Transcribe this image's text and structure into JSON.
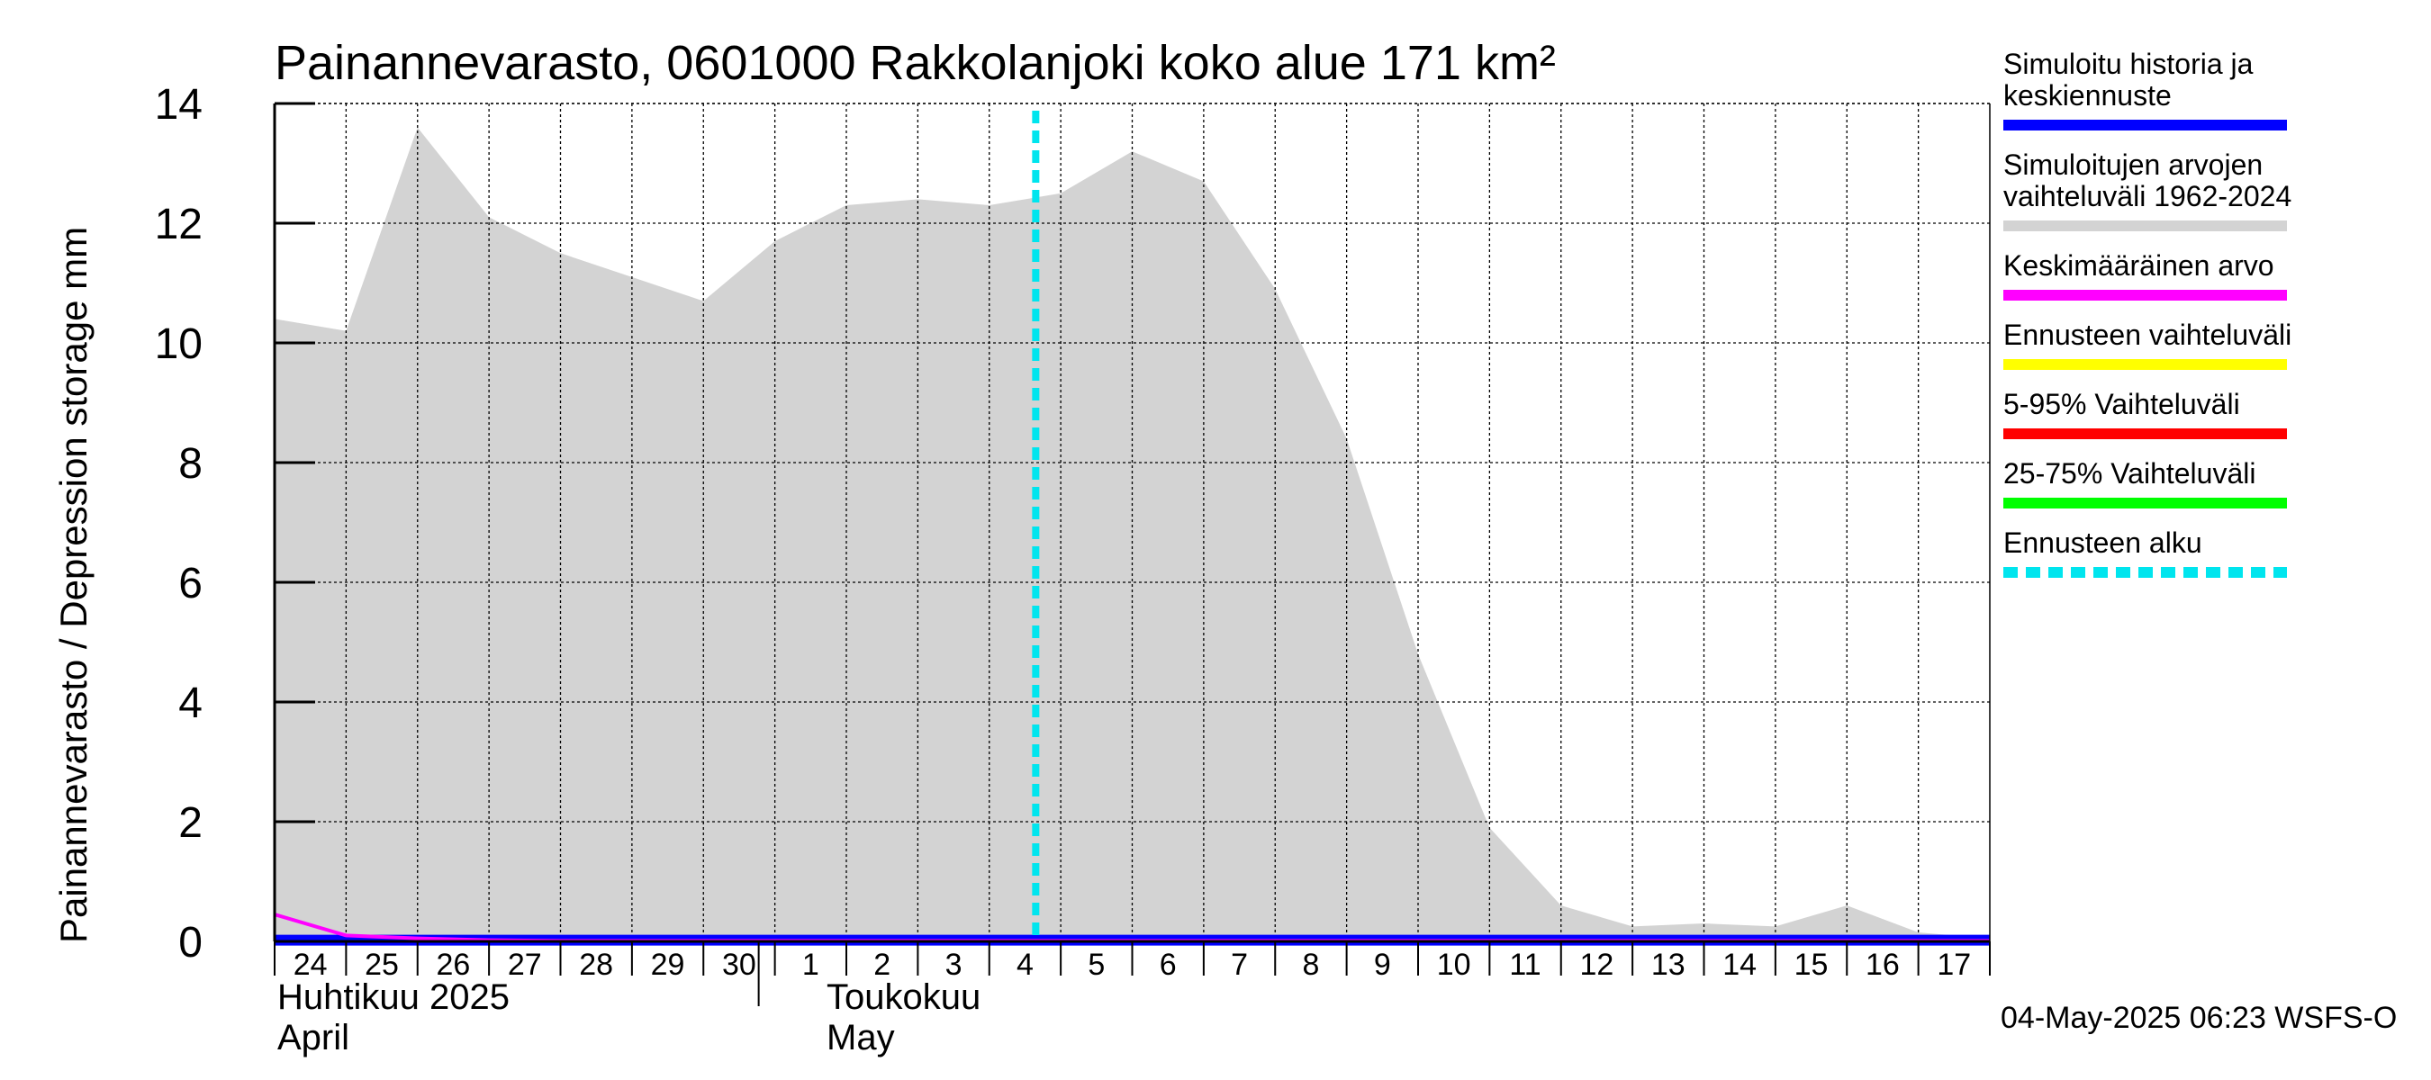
{
  "chart_data": {
    "type": "area",
    "title": "Painannevarasto, 0601000 Rakkolanjoki koko alue 171 km²",
    "ylabel": "Painannevarasto / Depression storage    mm",
    "ylim": [
      0,
      14
    ],
    "yticks": [
      0,
      2,
      4,
      6,
      8,
      10,
      12,
      14
    ],
    "grid": true,
    "x_tick_labels": [
      "24",
      "25",
      "26",
      "27",
      "28",
      "29",
      "30",
      "1",
      "2",
      "3",
      "4",
      "5",
      "6",
      "7",
      "8",
      "9",
      "10",
      "11",
      "12",
      "13",
      "14",
      "15",
      "16",
      "17"
    ],
    "months": [
      {
        "fi": "Huhtikuu  2025",
        "en": "April"
      },
      {
        "fi": "Toukokuu",
        "en": "May"
      }
    ],
    "x": [
      "2025-04-24",
      "2025-04-25",
      "2025-04-26",
      "2025-04-27",
      "2025-04-28",
      "2025-04-29",
      "2025-04-30",
      "2025-05-01",
      "2025-05-02",
      "2025-05-03",
      "2025-05-04",
      "2025-05-05",
      "2025-05-06",
      "2025-05-07",
      "2025-05-08",
      "2025-05-09",
      "2025-05-10",
      "2025-05-11",
      "2025-05-12",
      "2025-05-13",
      "2025-05-14",
      "2025-05-15",
      "2025-05-16",
      "2025-05-17",
      "2025-05-18"
    ],
    "range_max": [
      10.4,
      10.2,
      13.6,
      12.1,
      11.5,
      11.1,
      10.7,
      11.7,
      12.3,
      12.4,
      12.3,
      12.5,
      13.2,
      12.7,
      10.9,
      8.4,
      4.8,
      1.9,
      0.6,
      0.25,
      0.3,
      0.25,
      0.6,
      0.15,
      0.05
    ],
    "mean": [
      0.45,
      0.1,
      0.05,
      0.02,
      0.01,
      0.01,
      0.01,
      0.01,
      0.01,
      0.01,
      0.01,
      0.01,
      0.01,
      0.01,
      0.01,
      0.01,
      0.01,
      0.01,
      0.01,
      0.01,
      0.01,
      0.01,
      0.01,
      0.01,
      0.01
    ],
    "history": [
      0.02,
      0.02,
      0.02,
      0.02,
      0.02,
      0.02,
      0.02,
      0.02,
      0.02,
      0.02,
      0.02,
      0.02,
      0.02,
      0.02,
      0.02,
      0.02,
      0.02,
      0.02,
      0.02,
      0.02,
      0.02,
      0.02,
      0.02,
      0.02,
      0.02
    ],
    "forecast_start": "2025-05-04",
    "forecast_start_index": 10.65,
    "legend": [
      {
        "lines": [
          "Simuloitu historia ja",
          "keskiennuste"
        ],
        "color": "#0000ff",
        "style": "solid"
      },
      {
        "lines": [
          "Simuloitujen arvojen",
          "vaihteluväli 1962-2024"
        ],
        "color": "#d3d3d3",
        "style": "solid"
      },
      {
        "lines": [
          "Keskimääräinen arvo"
        ],
        "color": "#ff00ff",
        "style": "solid"
      },
      {
        "lines": [
          "Ennusteen vaihteluväli"
        ],
        "color": "#ffff00",
        "style": "solid"
      },
      {
        "lines": [
          "5-95% Vaihteluväli"
        ],
        "color": "#ff0000",
        "style": "solid"
      },
      {
        "lines": [
          "25-75% Vaihteluväli"
        ],
        "color": "#00ff00",
        "style": "solid"
      },
      {
        "lines": [
          "Ennusteen alku"
        ],
        "color": "#00e5ee",
        "style": "dashed"
      }
    ],
    "legend_position": "right",
    "footer": "04-May-2025 06:23 WSFS-O",
    "colors": {
      "range": "#d3d3d3",
      "mean": "#ff00ff",
      "history": "#0000ff",
      "forecast_start": "#00e5ee",
      "grid": "#000000"
    }
  }
}
